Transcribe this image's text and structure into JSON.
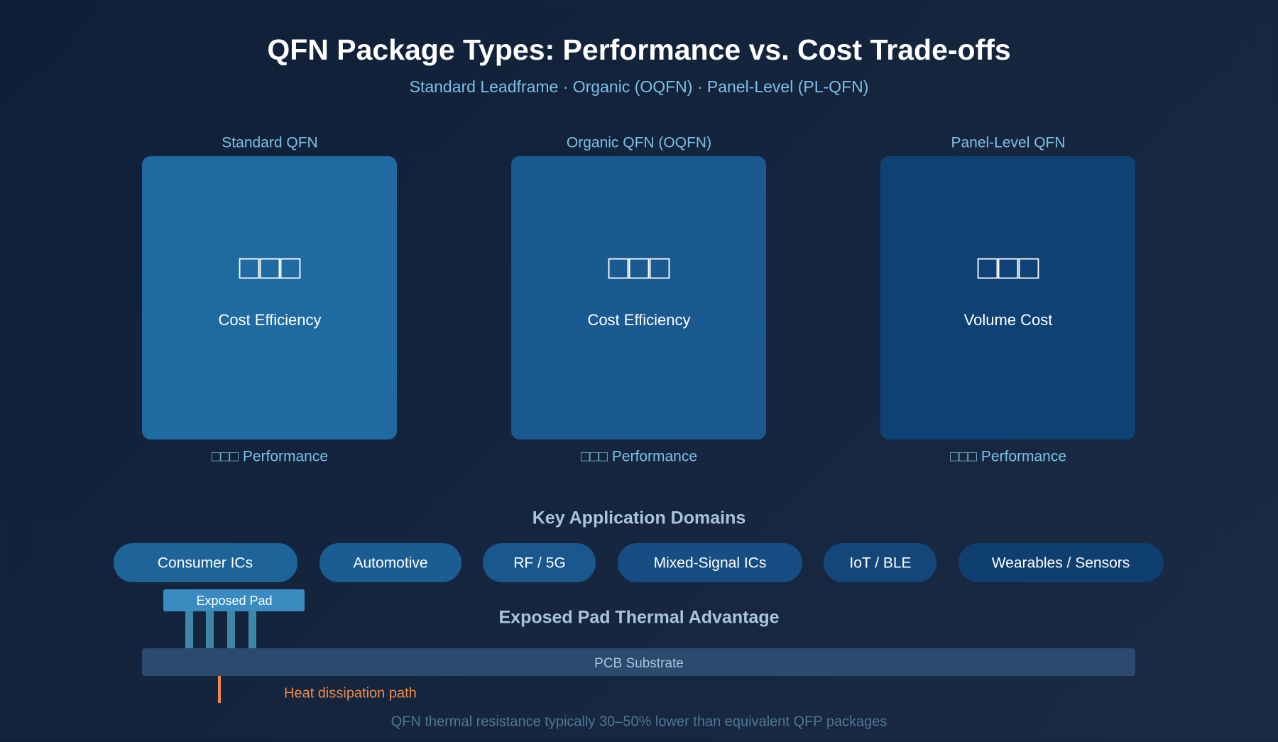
{
  "header": {
    "title": "QFN Package Types: Performance vs. Cost Trade-offs",
    "subtitle": "Standard Leadframe · Organic (OQFN) · Panel-Level (PL-QFN)"
  },
  "cards": [
    {
      "label": "Standard QFN",
      "icon": "□□□",
      "metric": "Cost Efficiency",
      "footer": "□□□ Performance"
    },
    {
      "label": "Organic QFN (OQFN)",
      "icon": "□□□",
      "metric": "Cost Efficiency",
      "footer": "□□□ Performance"
    },
    {
      "label": "Panel-Level QFN",
      "icon": "□□□",
      "metric": "Volume Cost",
      "footer": "□□□ Performance"
    }
  ],
  "applications": {
    "title": "Key Application Domains",
    "items": [
      "Consumer ICs",
      "Automotive",
      "RF / 5G",
      "Mixed-Signal ICs",
      "IoT / BLE",
      "Wearables / Sensors"
    ]
  },
  "thermal": {
    "pad": "Exposed Pad",
    "title": "Exposed Pad Thermal Advantage",
    "substrate": "PCB Substrate",
    "path": "Heat dissipation path",
    "note": "QFN thermal resistance typically 30–50% lower than equivalent QFP packages"
  }
}
